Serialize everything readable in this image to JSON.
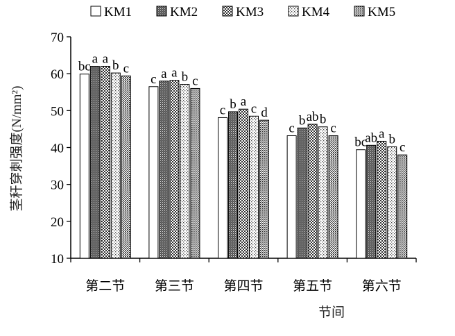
{
  "chart_data": {
    "type": "bar",
    "ylabel": "茎秆穿刺强度(N/mm²)",
    "xlabel": "节间",
    "ylim": [
      10,
      70
    ],
    "yticks": [
      10,
      20,
      30,
      40,
      50,
      60,
      70
    ],
    "grid": false,
    "legend_position": "top",
    "categories": [
      "第二节",
      "第三节",
      "第四节",
      "第五节",
      "第六节"
    ],
    "series": [
      {
        "name": "KM1",
        "pattern": "white",
        "values": [
          59.9,
          56.5,
          48.1,
          43.2,
          39.4
        ],
        "labels": [
          "bc",
          "c",
          "c",
          "c",
          "bc"
        ]
      },
      {
        "name": "KM2",
        "pattern": "dark",
        "values": [
          62.0,
          58.0,
          49.7,
          45.3,
          40.6
        ],
        "labels": [
          "a",
          "a",
          "b",
          "b",
          "ab"
        ]
      },
      {
        "name": "KM3",
        "pattern": "checker",
        "values": [
          62.0,
          58.2,
          50.4,
          46.3,
          41.7
        ],
        "labels": [
          "a",
          "a",
          "a",
          "ab",
          "a"
        ]
      },
      {
        "name": "KM4",
        "pattern": "dotted",
        "values": [
          60.2,
          57.1,
          48.5,
          45.6,
          40.2
        ],
        "labels": [
          "b",
          "b",
          "c",
          "b",
          "b"
        ]
      },
      {
        "name": "KM5",
        "pattern": "grid",
        "values": [
          59.4,
          56.0,
          47.4,
          43.2,
          38.0
        ],
        "labels": [
          "c",
          "c",
          "d",
          "c",
          "c"
        ]
      }
    ]
  }
}
